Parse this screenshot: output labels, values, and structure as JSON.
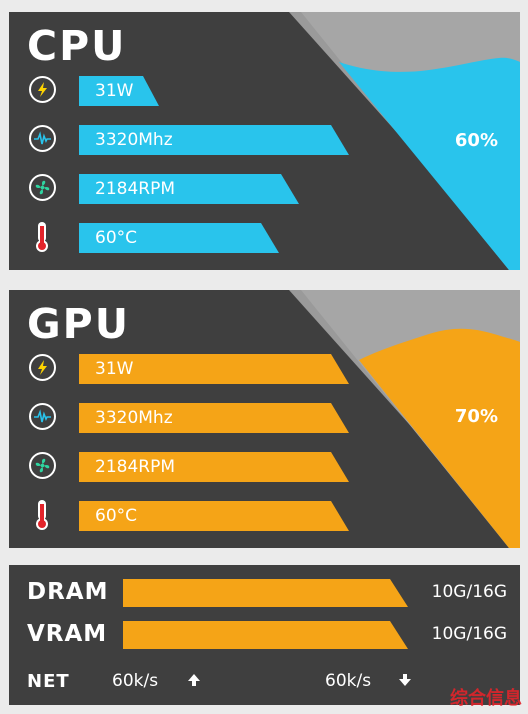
{
  "cpu": {
    "title": "CPU",
    "usage": "60%",
    "accent": "#29c4ec",
    "metrics": [
      {
        "icon": "power-icon",
        "value": "31W"
      },
      {
        "icon": "frequency-icon",
        "value": "3320Mhz"
      },
      {
        "icon": "fan-icon",
        "value": "2184RPM"
      },
      {
        "icon": "thermometer-icon",
        "value": "60°C"
      }
    ]
  },
  "gpu": {
    "title": "GPU",
    "usage": "70%",
    "accent": "#f5a417",
    "metrics": [
      {
        "icon": "power-icon",
        "value": "31W"
      },
      {
        "icon": "frequency-icon",
        "value": "3320Mhz"
      },
      {
        "icon": "fan-icon",
        "value": "2184RPM"
      },
      {
        "icon": "thermometer-icon",
        "value": "60°C"
      }
    ]
  },
  "memory": {
    "dram": {
      "label": "DRAM",
      "value": "10G/16G"
    },
    "vram": {
      "label": "VRAM",
      "value": "10G/16G"
    }
  },
  "net": {
    "label": "NET",
    "upload": "60k/s",
    "download": "60k/s"
  },
  "watermark": "综合信息"
}
